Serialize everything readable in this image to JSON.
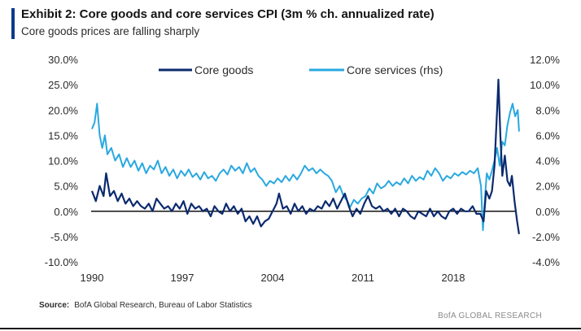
{
  "header": {
    "title": "Exhibit 2: Core goods and core services CPI (3m % ch. annualized rate)",
    "subtitle": "Core goods prices are falling sharply"
  },
  "footer": {
    "source_label": "Source:",
    "source_text": "BofA Global Research, Bureau of Labor Statistics",
    "brand": "BofA GLOBAL RESEARCH"
  },
  "colors": {
    "core_goods": "#0b2a6e",
    "core_services": "#29a8e0",
    "accent": "#0b3a8c"
  },
  "chart_data": {
    "type": "line",
    "x_ticks": [
      "1990",
      "1997",
      "2004",
      "2011",
      "2018"
    ],
    "y_left": {
      "ticks": [
        "30.0%",
        "25.0%",
        "20.0%",
        "15.0%",
        "10.0%",
        "5.0%",
        "0.0%",
        "-5.0%",
        "-10.0%"
      ],
      "range": [
        -10,
        30
      ]
    },
    "y_right": {
      "ticks": [
        "12.0%",
        "10.0%",
        "8.0%",
        "6.0%",
        "4.0%",
        "2.0%",
        "0.0%",
        "-2.0%",
        "-4.0%"
      ],
      "range": [
        -4,
        12
      ]
    },
    "legend_position": "top-center",
    "series": [
      {
        "name": "Core goods",
        "axis": "left",
        "points": [
          [
            1990.0,
            4.0
          ],
          [
            1990.3,
            2.0
          ],
          [
            1990.6,
            5.0
          ],
          [
            1990.9,
            3.0
          ],
          [
            1991.1,
            7.5
          ],
          [
            1991.4,
            3.0
          ],
          [
            1991.7,
            4.0
          ],
          [
            1992.0,
            2.0
          ],
          [
            1992.3,
            3.5
          ],
          [
            1992.6,
            1.5
          ],
          [
            1992.9,
            2.5
          ],
          [
            1993.2,
            1.0
          ],
          [
            1993.5,
            2.0
          ],
          [
            1993.8,
            1.0
          ],
          [
            1994.1,
            0.5
          ],
          [
            1994.4,
            1.5
          ],
          [
            1994.7,
            0.0
          ],
          [
            1995.0,
            2.5
          ],
          [
            1995.3,
            1.5
          ],
          [
            1995.6,
            0.5
          ],
          [
            1995.9,
            1.0
          ],
          [
            1996.2,
            0.0
          ],
          [
            1996.5,
            1.5
          ],
          [
            1996.8,
            0.5
          ],
          [
            1997.1,
            2.0
          ],
          [
            1997.4,
            -0.5
          ],
          [
            1997.7,
            1.5
          ],
          [
            1998.0,
            0.5
          ],
          [
            1998.3,
            1.0
          ],
          [
            1998.6,
            0.0
          ],
          [
            1998.9,
            0.5
          ],
          [
            1999.2,
            -1.0
          ],
          [
            1999.5,
            1.0
          ],
          [
            1999.8,
            0.0
          ],
          [
            2000.1,
            -0.5
          ],
          [
            2000.4,
            1.5
          ],
          [
            2000.7,
            0.0
          ],
          [
            2001.0,
            1.0
          ],
          [
            2001.3,
            -0.5
          ],
          [
            2001.6,
            0.5
          ],
          [
            2001.9,
            -2.0
          ],
          [
            2002.2,
            -1.0
          ],
          [
            2002.5,
            -2.5
          ],
          [
            2002.8,
            -1.0
          ],
          [
            2003.1,
            -3.0
          ],
          [
            2003.4,
            -2.0
          ],
          [
            2003.7,
            -1.5
          ],
          [
            2004.0,
            0.0
          ],
          [
            2004.3,
            1.5
          ],
          [
            2004.5,
            3.5
          ],
          [
            2004.8,
            0.5
          ],
          [
            2005.1,
            1.0
          ],
          [
            2005.4,
            -0.5
          ],
          [
            2005.7,
            1.5
          ],
          [
            2006.0,
            0.0
          ],
          [
            2006.3,
            1.0
          ],
          [
            2006.6,
            -0.5
          ],
          [
            2006.9,
            0.5
          ],
          [
            2007.2,
            0.0
          ],
          [
            2007.5,
            1.0
          ],
          [
            2007.8,
            0.5
          ],
          [
            2008.1,
            2.0
          ],
          [
            2008.4,
            1.0
          ],
          [
            2008.7,
            2.5
          ],
          [
            2009.0,
            0.5
          ],
          [
            2009.3,
            2.0
          ],
          [
            2009.6,
            3.5
          ],
          [
            2009.9,
            1.0
          ],
          [
            2010.2,
            -1.0
          ],
          [
            2010.5,
            0.5
          ],
          [
            2010.8,
            -0.5
          ],
          [
            2011.1,
            1.5
          ],
          [
            2011.4,
            3.0
          ],
          [
            2011.7,
            1.0
          ],
          [
            2012.0,
            0.5
          ],
          [
            2012.3,
            1.0
          ],
          [
            2012.6,
            0.0
          ],
          [
            2012.9,
            0.5
          ],
          [
            2013.2,
            -0.5
          ],
          [
            2013.5,
            0.5
          ],
          [
            2013.8,
            -1.0
          ],
          [
            2014.1,
            0.5
          ],
          [
            2014.4,
            0.0
          ],
          [
            2014.7,
            -1.0
          ],
          [
            2015.0,
            -1.5
          ],
          [
            2015.3,
            0.0
          ],
          [
            2015.6,
            -0.5
          ],
          [
            2015.9,
            -1.0
          ],
          [
            2016.2,
            0.5
          ],
          [
            2016.5,
            -1.0
          ],
          [
            2016.8,
            0.0
          ],
          [
            2017.1,
            -1.0
          ],
          [
            2017.4,
            -1.5
          ],
          [
            2017.7,
            0.0
          ],
          [
            2018.0,
            0.5
          ],
          [
            2018.3,
            -0.5
          ],
          [
            2018.6,
            0.5
          ],
          [
            2018.9,
            0.0
          ],
          [
            2019.2,
            0.0
          ],
          [
            2019.5,
            1.0
          ],
          [
            2019.8,
            -0.5
          ],
          [
            2020.1,
            -0.5
          ],
          [
            2020.35,
            -2.0
          ],
          [
            2020.55,
            4.0
          ],
          [
            2020.8,
            2.5
          ],
          [
            2021.0,
            4.0
          ],
          [
            2021.2,
            9.0
          ],
          [
            2021.4,
            20.0
          ],
          [
            2021.5,
            26.0
          ],
          [
            2021.65,
            15.0
          ],
          [
            2021.8,
            7.0
          ],
          [
            2022.0,
            11.0
          ],
          [
            2022.2,
            6.0
          ],
          [
            2022.4,
            5.0
          ],
          [
            2022.55,
            7.0
          ],
          [
            2022.75,
            2.0
          ],
          [
            2022.95,
            -2.0
          ],
          [
            2023.1,
            -4.5
          ]
        ]
      },
      {
        "name": "Core services (rhs)",
        "axis": "right",
        "points": [
          [
            1990.0,
            6.5
          ],
          [
            1990.2,
            7.0
          ],
          [
            1990.4,
            8.5
          ],
          [
            1990.6,
            6.0
          ],
          [
            1990.8,
            5.0
          ],
          [
            1991.0,
            6.0
          ],
          [
            1991.2,
            4.5
          ],
          [
            1991.5,
            5.0
          ],
          [
            1991.8,
            4.0
          ],
          [
            1992.1,
            4.5
          ],
          [
            1992.4,
            3.5
          ],
          [
            1992.7,
            4.2
          ],
          [
            1993.0,
            3.5
          ],
          [
            1993.3,
            4.0
          ],
          [
            1993.6,
            3.2
          ],
          [
            1993.9,
            3.8
          ],
          [
            1994.2,
            3.0
          ],
          [
            1994.5,
            3.6
          ],
          [
            1994.8,
            3.3
          ],
          [
            1995.1,
            4.0
          ],
          [
            1995.4,
            3.0
          ],
          [
            1995.7,
            3.5
          ],
          [
            1996.0,
            2.8
          ],
          [
            1996.3,
            3.3
          ],
          [
            1996.6,
            2.6
          ],
          [
            1996.9,
            3.2
          ],
          [
            1997.2,
            2.8
          ],
          [
            1997.5,
            3.3
          ],
          [
            1997.8,
            2.7
          ],
          [
            1998.1,
            3.0
          ],
          [
            1998.4,
            2.5
          ],
          [
            1998.7,
            3.1
          ],
          [
            1999.0,
            2.6
          ],
          [
            1999.3,
            2.8
          ],
          [
            1999.6,
            2.4
          ],
          [
            1999.9,
            3.0
          ],
          [
            2000.2,
            3.3
          ],
          [
            2000.5,
            2.9
          ],
          [
            2000.8,
            3.6
          ],
          [
            2001.1,
            3.2
          ],
          [
            2001.4,
            3.5
          ],
          [
            2001.7,
            3.0
          ],
          [
            2002.0,
            3.8
          ],
          [
            2002.3,
            3.1
          ],
          [
            2002.6,
            3.4
          ],
          [
            2002.9,
            2.8
          ],
          [
            2003.2,
            2.5
          ],
          [
            2003.5,
            2.0
          ],
          [
            2003.8,
            2.4
          ],
          [
            2004.1,
            2.2
          ],
          [
            2004.4,
            2.6
          ],
          [
            2004.7,
            2.3
          ],
          [
            2005.0,
            2.8
          ],
          [
            2005.3,
            2.4
          ],
          [
            2005.6,
            2.9
          ],
          [
            2005.9,
            2.5
          ],
          [
            2006.2,
            3.0
          ],
          [
            2006.5,
            3.6
          ],
          [
            2006.8,
            3.2
          ],
          [
            2007.1,
            3.4
          ],
          [
            2007.4,
            3.0
          ],
          [
            2007.7,
            3.3
          ],
          [
            2008.0,
            3.0
          ],
          [
            2008.3,
            2.8
          ],
          [
            2008.6,
            2.4
          ],
          [
            2008.9,
            1.5
          ],
          [
            2009.2,
            2.0
          ],
          [
            2009.5,
            1.2
          ],
          [
            2009.8,
            0.8
          ],
          [
            2010.0,
            0.3
          ],
          [
            2010.3,
            0.9
          ],
          [
            2010.6,
            0.6
          ],
          [
            2010.9,
            1.0
          ],
          [
            2011.2,
            1.2
          ],
          [
            2011.5,
            1.8
          ],
          [
            2011.8,
            1.4
          ],
          [
            2012.1,
            2.2
          ],
          [
            2012.4,
            1.8
          ],
          [
            2012.7,
            2.0
          ],
          [
            2013.0,
            2.4
          ],
          [
            2013.3,
            2.0
          ],
          [
            2013.6,
            2.3
          ],
          [
            2013.9,
            2.1
          ],
          [
            2014.2,
            2.6
          ],
          [
            2014.5,
            2.2
          ],
          [
            2014.8,
            2.8
          ],
          [
            2015.1,
            2.4
          ],
          [
            2015.4,
            2.7
          ],
          [
            2015.7,
            2.5
          ],
          [
            2016.0,
            3.2
          ],
          [
            2016.3,
            2.8
          ],
          [
            2016.6,
            3.4
          ],
          [
            2016.9,
            3.0
          ],
          [
            2017.2,
            2.4
          ],
          [
            2017.5,
            2.8
          ],
          [
            2017.8,
            2.6
          ],
          [
            2018.1,
            3.0
          ],
          [
            2018.4,
            2.8
          ],
          [
            2018.7,
            3.1
          ],
          [
            2019.0,
            2.9
          ],
          [
            2019.3,
            3.2
          ],
          [
            2019.6,
            3.0
          ],
          [
            2019.9,
            3.4
          ],
          [
            2020.15,
            2.0
          ],
          [
            2020.3,
            -1.5
          ],
          [
            2020.45,
            1.0
          ],
          [
            2020.6,
            3.0
          ],
          [
            2020.8,
            2.5
          ],
          [
            2021.0,
            3.2
          ],
          [
            2021.2,
            4.0
          ],
          [
            2021.4,
            5.0
          ],
          [
            2021.6,
            3.6
          ],
          [
            2021.8,
            5.5
          ],
          [
            2022.0,
            5.2
          ],
          [
            2022.2,
            6.8
          ],
          [
            2022.4,
            7.8
          ],
          [
            2022.6,
            8.5
          ],
          [
            2022.8,
            7.5
          ],
          [
            2023.0,
            8.0
          ],
          [
            2023.1,
            6.3
          ]
        ]
      }
    ]
  }
}
